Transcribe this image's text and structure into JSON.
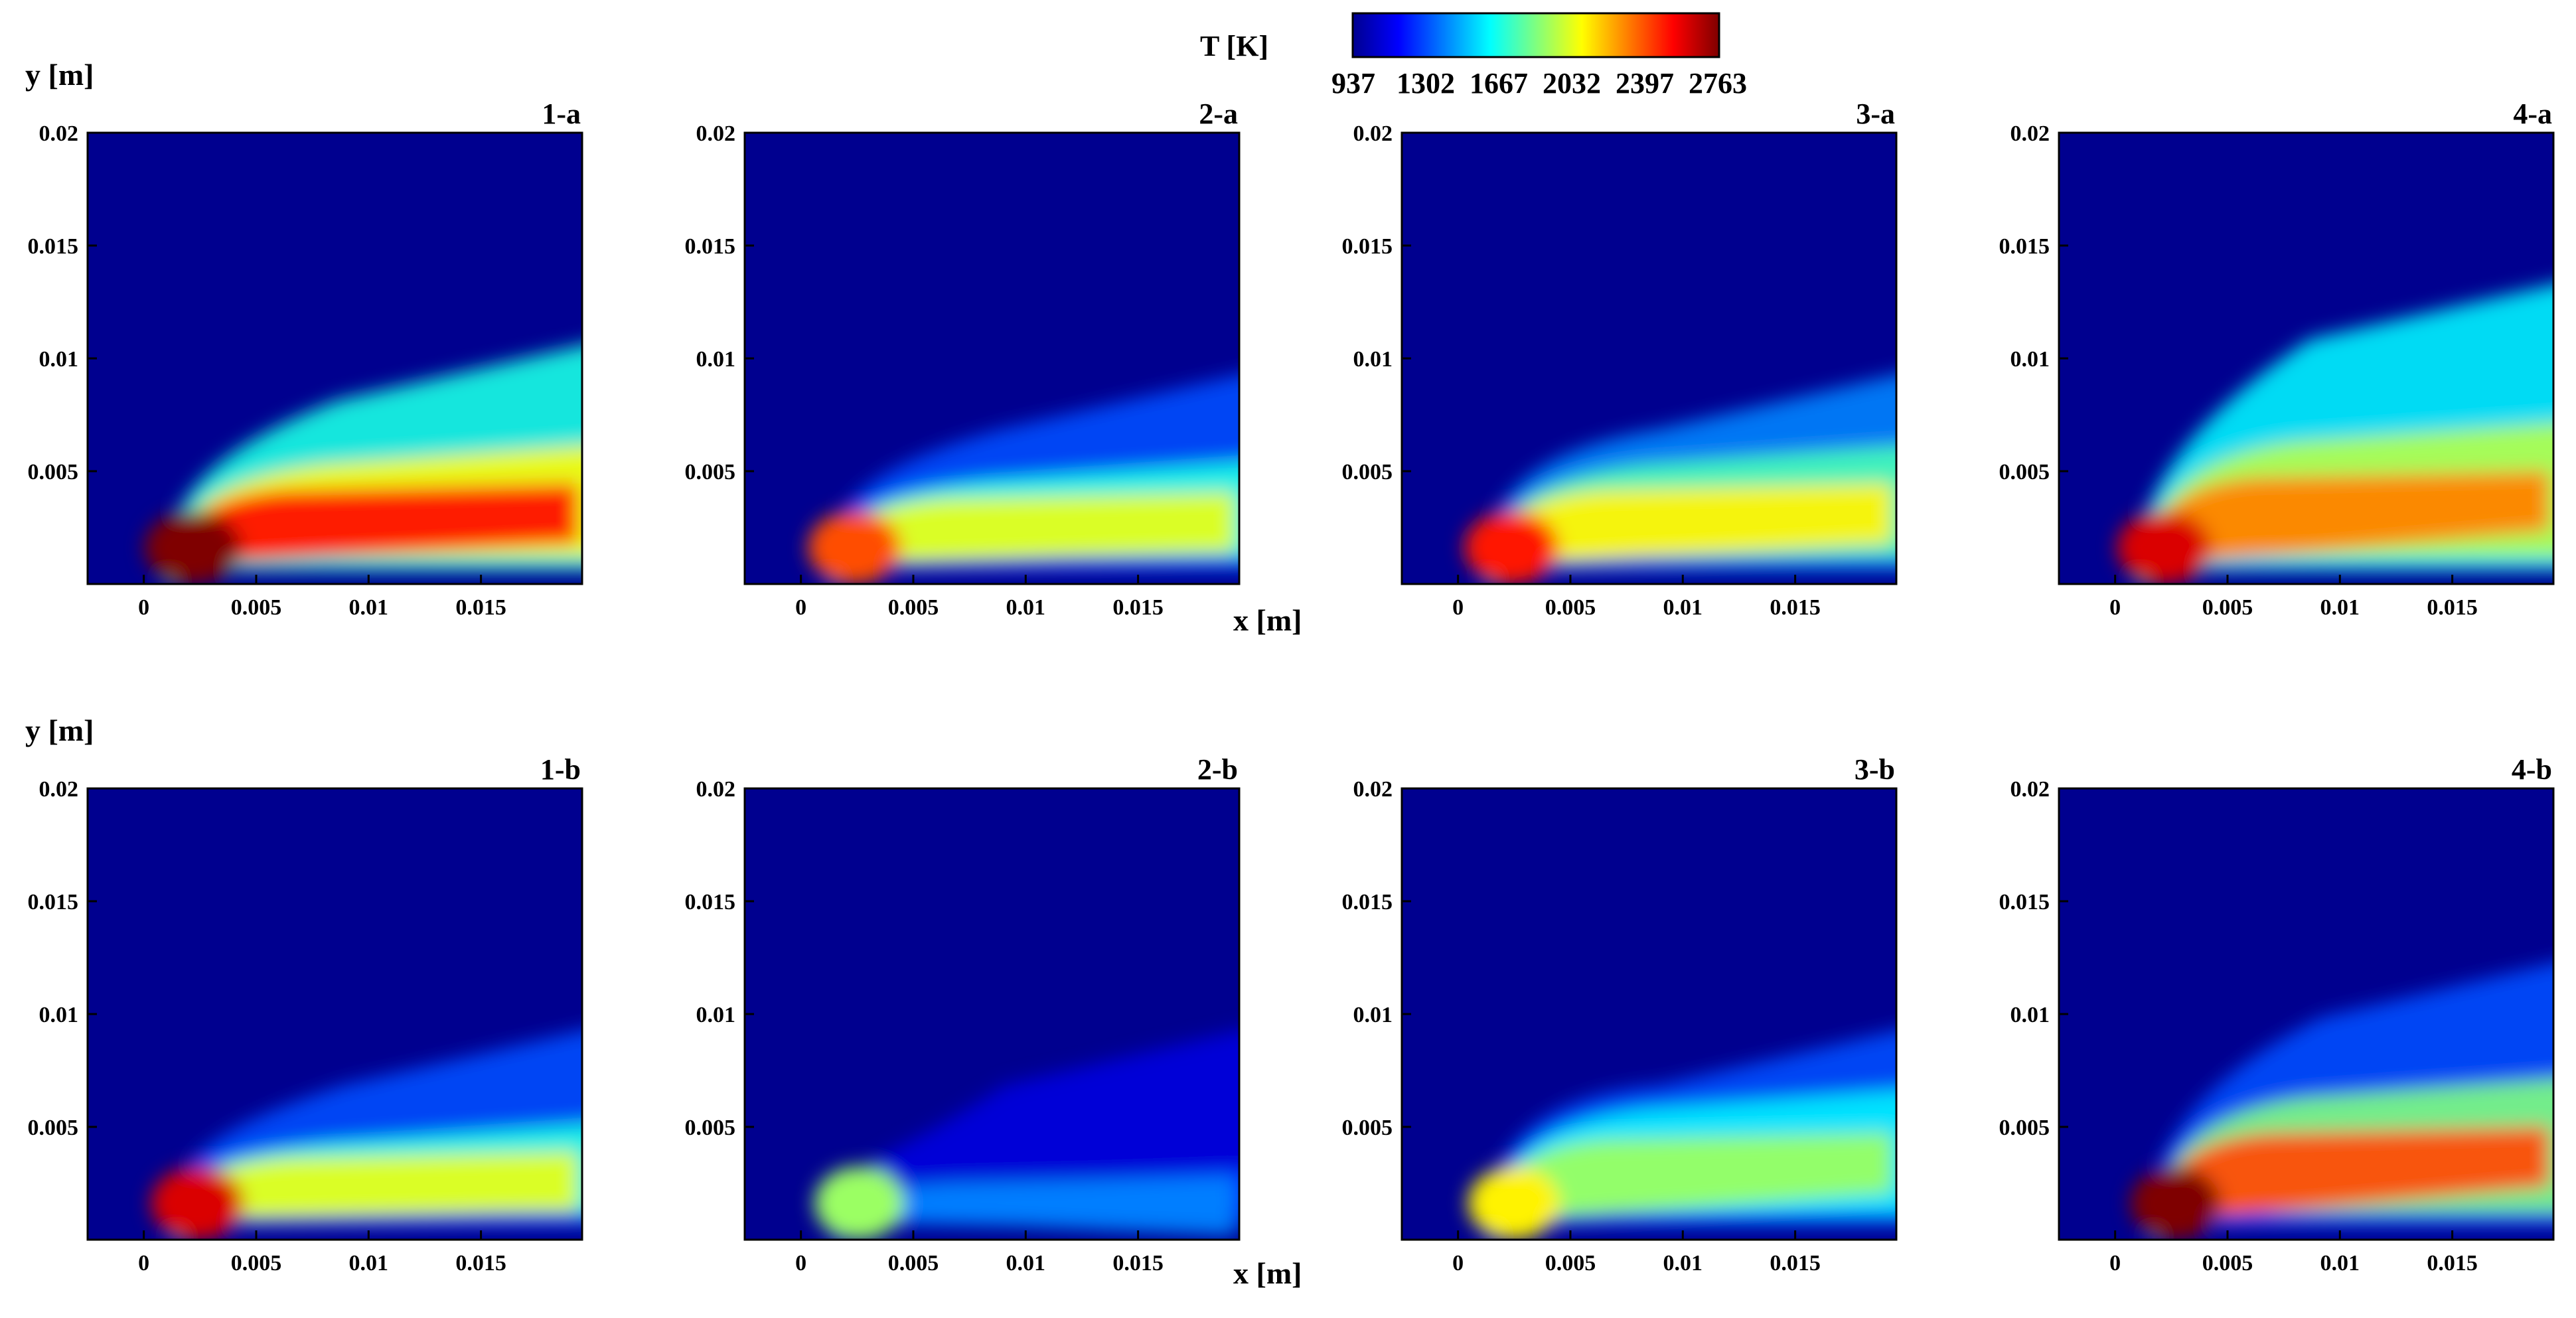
{
  "figure": {
    "colorbar": {
      "title": "T [K]",
      "ticks": [
        "937",
        "1302",
        "1667",
        "2032",
        "2397",
        "2763"
      ],
      "colors": [
        "#00008f",
        "#0000ff",
        "#007fff",
        "#00ffff",
        "#7fff7f",
        "#ffff00",
        "#ff7f00",
        "#ff0000",
        "#7f0000"
      ]
    },
    "rows": [
      {
        "ylabel": "y [m]",
        "xlabel": "x [m]"
      },
      {
        "ylabel": "y [m]",
        "xlabel": "x [m]"
      }
    ],
    "background_color": "#00008f"
  },
  "chart_data": {
    "type": "heatmap",
    "variable": "T [K]",
    "colormap": "jet",
    "value_range": [
      937,
      2763
    ],
    "xlabel": "x [m]",
    "ylabel": "y [m]",
    "xlim": [
      -0.0025,
      0.0195
    ],
    "ylim": [
      0,
      0.02
    ],
    "xticks": [
      "0",
      "0.005",
      "0.01",
      "0.015"
    ],
    "yticks": [
      "0.005",
      "0.01",
      "0.015",
      "0.02"
    ],
    "panels": [
      {
        "label": "1-a",
        "flame": {
          "base_x": 0.001,
          "width": 0.0018,
          "core_T": 2763,
          "inner_T": 2500,
          "outer_T": 1667,
          "inner_top": 0.0065,
          "outer_top": 0.0108,
          "extent_x": 0.0195
        }
      },
      {
        "label": "2-a",
        "flame": {
          "base_x": 0.0012,
          "width": 0.0015,
          "core_T": 2397,
          "inner_T": 2032,
          "outer_T": 1302,
          "inner_top": 0.0058,
          "outer_top": 0.0095,
          "extent_x": 0.0195
        }
      },
      {
        "label": "3-a",
        "flame": {
          "base_x": 0.0012,
          "width": 0.0016,
          "core_T": 2500,
          "inner_T": 2100,
          "outer_T": 1400,
          "inner_top": 0.0065,
          "outer_top": 0.0095,
          "extent_x": 0.0195
        }
      },
      {
        "label": "4-a",
        "flame": {
          "base_x": 0.001,
          "width": 0.0016,
          "core_T": 2600,
          "inner_T": 2300,
          "outer_T": 1600,
          "inner_top": 0.0075,
          "outer_top": 0.0135,
          "extent_x": 0.0195
        }
      },
      {
        "label": "1-b",
        "flame": {
          "base_x": 0.0012,
          "width": 0.0015,
          "core_T": 2600,
          "inner_T": 2032,
          "outer_T": 1302,
          "inner_top": 0.0055,
          "outer_top": 0.0095,
          "extent_x": 0.0195
        }
      },
      {
        "label": "2-b",
        "flame": {
          "base_x": 0.0014,
          "width": 0.0012,
          "core_T": 1900,
          "inner_T": 1400,
          "outer_T": 1100,
          "inner_top": 0.0035,
          "outer_top": 0.0095,
          "extent_x": 0.0195
        }
      },
      {
        "label": "3-b",
        "flame": {
          "base_x": 0.0013,
          "width": 0.0014,
          "core_T": 2100,
          "inner_T": 1900,
          "outer_T": 1302,
          "inner_top": 0.007,
          "outer_top": 0.0095,
          "extent_x": 0.0195
        }
      },
      {
        "label": "4-b",
        "flame": {
          "base_x": 0.0015,
          "width": 0.0013,
          "core_T": 2763,
          "inner_T": 2397,
          "outer_T": 1302,
          "inner_top": 0.0075,
          "outer_top": 0.0125,
          "extent_x": 0.0195
        }
      }
    ]
  }
}
